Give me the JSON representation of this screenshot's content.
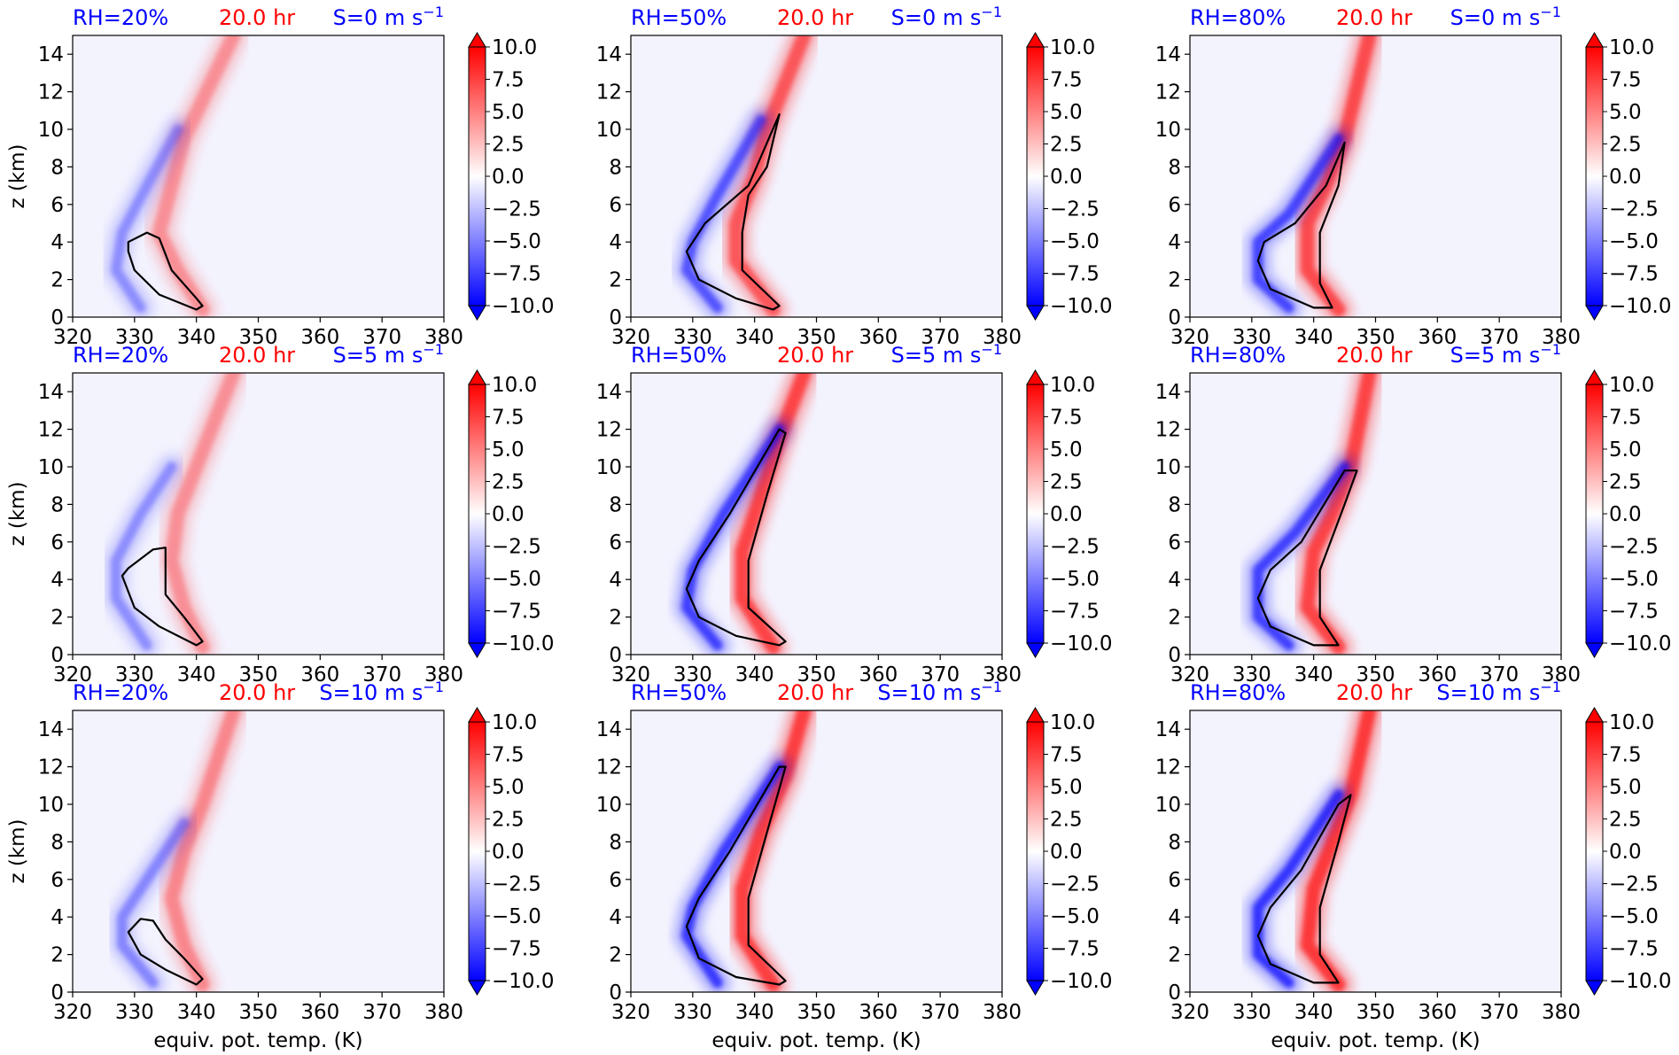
{
  "figure": {
    "ylabel": "z (km)",
    "xlabel": "equiv. pot. temp. (K)",
    "colorbar": {
      "ticks": [
        "10.0",
        "7.5",
        "5.0",
        "2.5",
        "0.0",
        "−2.5",
        "−5.0",
        "−7.5",
        "−10.0"
      ],
      "range": [
        -10,
        10
      ],
      "extend": "both",
      "colormap": "bwr",
      "colors": {
        "neg": "#0000ff",
        "zero": "#ffffff",
        "pos": "#ff0000"
      }
    },
    "colors": {
      "rh_text": "#0000ff",
      "time_text": "#ff0000",
      "shear_text": "#0000ff",
      "contour": "#000000",
      "background_field": "#f3f3fe"
    }
  },
  "chart_data": {
    "type": "heatmap",
    "layout": "3x3 grid",
    "xlim": [
      320,
      380
    ],
    "ylim": [
      0,
      15
    ],
    "xticks": [
      "320",
      "330",
      "340",
      "350",
      "360",
      "370",
      "380"
    ],
    "yticks": [
      "0",
      "2",
      "4",
      "6",
      "8",
      "10",
      "12",
      "14"
    ],
    "xlabel": "equiv. pot. temp. (K)",
    "ylabel": "z (km)",
    "panels": [
      {
        "rh": "RH=20%",
        "time": "20.0 hr",
        "shear": "S=0 m s",
        "sup": "−1",
        "strength": 0.35,
        "neg_band": [
          [
            331,
            0.5
          ],
          [
            327,
            2.5
          ],
          [
            328,
            4.5
          ],
          [
            332,
            7
          ],
          [
            337,
            10
          ]
        ],
        "pos_band": [
          [
            341,
            0.4
          ],
          [
            337,
            2.5
          ],
          [
            334,
            4.5
          ],
          [
            336,
            7
          ],
          [
            338,
            9.5
          ],
          [
            346,
            15
          ]
        ],
        "contour": [
          [
            329,
            3.5
          ],
          [
            330,
            2.5
          ],
          [
            334,
            1.2
          ],
          [
            340,
            0.4
          ],
          [
            341,
            0.6
          ],
          [
            340,
            1.0
          ],
          [
            336,
            2.5
          ],
          [
            334,
            4.2
          ],
          [
            332,
            4.5
          ],
          [
            329,
            4
          ]
        ]
      },
      {
        "rh": "RH=50%",
        "time": "20.0 hr",
        "shear": "S=0 m s",
        "sup": "−1",
        "strength": 0.75,
        "neg_band": [
          [
            334,
            0.5
          ],
          [
            329,
            2.5
          ],
          [
            330,
            4
          ],
          [
            334,
            6.5
          ],
          [
            341,
            10.5
          ]
        ],
        "pos_band": [
          [
            343,
            0.4
          ],
          [
            337,
            3
          ],
          [
            337,
            5
          ],
          [
            340,
            7.5
          ],
          [
            342,
            10
          ],
          [
            348,
            15
          ]
        ],
        "contour": [
          [
            329,
            3.5
          ],
          [
            331,
            2
          ],
          [
            337,
            1
          ],
          [
            343,
            0.4
          ],
          [
            344,
            0.6
          ],
          [
            338,
            2.5
          ],
          [
            338,
            4.5
          ],
          [
            339,
            6.5
          ],
          [
            342,
            8
          ],
          [
            344,
            10.8
          ],
          [
            339,
            7
          ],
          [
            332,
            5
          ],
          [
            329,
            3.5
          ]
        ]
      },
      {
        "rh": "RH=80%",
        "time": "20.0 hr",
        "shear": "S=0 m s",
        "sup": "−1",
        "strength": 0.85,
        "neg_band": [
          [
            336,
            0.5
          ],
          [
            331,
            2
          ],
          [
            331,
            4
          ],
          [
            336,
            5.5
          ],
          [
            344,
            9.5
          ]
        ],
        "pos_band": [
          [
            344,
            0.4
          ],
          [
            339,
            2.5
          ],
          [
            339,
            5
          ],
          [
            342,
            7
          ],
          [
            345,
            9.5
          ],
          [
            349,
            15
          ]
        ],
        "contour": [
          [
            331,
            3
          ],
          [
            333,
            1.5
          ],
          [
            340,
            0.5
          ],
          [
            343,
            0.5
          ],
          [
            341,
            1.8
          ],
          [
            341,
            4.5
          ],
          [
            344,
            7
          ],
          [
            345,
            9.3
          ],
          [
            342,
            7
          ],
          [
            337,
            5
          ],
          [
            332,
            4
          ],
          [
            331,
            3
          ]
        ]
      },
      {
        "rh": "RH=20%",
        "time": "20.0 hr",
        "shear": "S=5 m s",
        "sup": "−1",
        "strength": 0.35,
        "neg_band": [
          [
            332,
            0.5
          ],
          [
            327,
            3
          ],
          [
            327,
            5
          ],
          [
            331,
            7.5
          ],
          [
            336,
            10
          ]
        ],
        "pos_band": [
          [
            341,
            0.4
          ],
          [
            338,
            2.5
          ],
          [
            336,
            5
          ],
          [
            337,
            7.5
          ],
          [
            340,
            10
          ],
          [
            346,
            15
          ]
        ],
        "contour": [
          [
            328,
            4.2
          ],
          [
            330,
            2.5
          ],
          [
            334,
            1.5
          ],
          [
            340,
            0.5
          ],
          [
            341,
            0.7
          ],
          [
            338,
            2
          ],
          [
            335,
            3.2
          ],
          [
            335,
            5.7
          ],
          [
            333,
            5.6
          ],
          [
            329,
            4.6
          ],
          [
            328,
            4.2
          ]
        ]
      },
      {
        "rh": "RH=50%",
        "time": "20.0 hr",
        "shear": "S=5 m s",
        "sup": "−1",
        "strength": 0.9,
        "neg_band": [
          [
            334,
            0.5
          ],
          [
            329,
            2.5
          ],
          [
            330,
            4.5
          ],
          [
            335,
            7.5
          ],
          [
            344,
            12
          ]
        ],
        "pos_band": [
          [
            343,
            0.4
          ],
          [
            338,
            3
          ],
          [
            338,
            5.5
          ],
          [
            341,
            8.5
          ],
          [
            344,
            11.5
          ],
          [
            348,
            15
          ]
        ],
        "contour": [
          [
            329,
            3.5
          ],
          [
            331,
            2
          ],
          [
            337,
            1
          ],
          [
            344,
            0.5
          ],
          [
            345,
            0.7
          ],
          [
            339,
            2.5
          ],
          [
            339,
            5
          ],
          [
            342,
            8.5
          ],
          [
            345,
            11.8
          ],
          [
            344,
            12
          ],
          [
            336,
            7.5
          ],
          [
            331,
            5
          ],
          [
            329,
            3.5
          ]
        ]
      },
      {
        "rh": "RH=80%",
        "time": "20.0 hr",
        "shear": "S=5 m s",
        "sup": "−1",
        "strength": 0.9,
        "neg_band": [
          [
            336,
            0.5
          ],
          [
            331,
            2
          ],
          [
            331,
            4.5
          ],
          [
            337,
            6.5
          ],
          [
            345,
            10
          ]
        ],
        "pos_band": [
          [
            344,
            0.4
          ],
          [
            339,
            2.5
          ],
          [
            340,
            5.5
          ],
          [
            343,
            7.5
          ],
          [
            346,
            10
          ],
          [
            349,
            15
          ]
        ],
        "contour": [
          [
            331,
            3
          ],
          [
            333,
            1.5
          ],
          [
            340,
            0.5
          ],
          [
            344,
            0.5
          ],
          [
            341,
            2
          ],
          [
            341,
            4.5
          ],
          [
            345,
            8
          ],
          [
            347,
            9.8
          ],
          [
            345,
            9.8
          ],
          [
            338,
            6
          ],
          [
            333,
            4.5
          ],
          [
            331,
            3
          ]
        ]
      },
      {
        "rh": "RH=20%",
        "time": "20.0 hr",
        "shear": "S=10 m s",
        "sup": "−1",
        "strength": 0.4,
        "neg_band": [
          [
            333,
            0.5
          ],
          [
            328,
            2.5
          ],
          [
            328,
            4
          ],
          [
            332,
            6
          ],
          [
            338,
            9
          ]
        ],
        "pos_band": [
          [
            341,
            0.4
          ],
          [
            338,
            2.5
          ],
          [
            336,
            5
          ],
          [
            338,
            7.5
          ],
          [
            341,
            10
          ],
          [
            346,
            15
          ]
        ],
        "contour": [
          [
            329,
            3.2
          ],
          [
            331,
            2
          ],
          [
            335,
            1.2
          ],
          [
            340,
            0.4
          ],
          [
            341,
            0.7
          ],
          [
            338,
            1.8
          ],
          [
            335,
            2.8
          ],
          [
            333,
            3.8
          ],
          [
            331,
            3.9
          ],
          [
            329,
            3.2
          ]
        ]
      },
      {
        "rh": "RH=50%",
        "time": "20.0 hr",
        "shear": "S=10 m s",
        "sup": "−1",
        "strength": 0.95,
        "neg_band": [
          [
            334,
            0.5
          ],
          [
            329,
            3
          ],
          [
            330,
            4.5
          ],
          [
            335,
            7.5
          ],
          [
            344,
            12
          ]
        ],
        "pos_band": [
          [
            343,
            0.4
          ],
          [
            338,
            3
          ],
          [
            338,
            5.5
          ],
          [
            341,
            8.5
          ],
          [
            345,
            11.5
          ],
          [
            348,
            15
          ]
        ],
        "contour": [
          [
            329,
            3.5
          ],
          [
            331,
            1.8
          ],
          [
            337,
            0.8
          ],
          [
            344,
            0.4
          ],
          [
            345,
            0.6
          ],
          [
            339,
            2.5
          ],
          [
            339,
            5
          ],
          [
            342,
            8.5
          ],
          [
            345,
            12
          ],
          [
            344,
            12
          ],
          [
            336,
            7.5
          ],
          [
            331,
            5
          ],
          [
            329,
            3.5
          ]
        ]
      },
      {
        "rh": "RH=80%",
        "time": "20.0 hr",
        "shear": "S=10 m s",
        "sup": "−1",
        "strength": 1.0,
        "neg_band": [
          [
            336,
            0.5
          ],
          [
            331,
            2
          ],
          [
            331,
            4.5
          ],
          [
            336,
            6.5
          ],
          [
            344,
            10.5
          ]
        ],
        "pos_band": [
          [
            344,
            0.4
          ],
          [
            339,
            2.5
          ],
          [
            340,
            5.5
          ],
          [
            343,
            8
          ],
          [
            346,
            10.5
          ],
          [
            349,
            15
          ]
        ],
        "contour": [
          [
            331,
            3
          ],
          [
            333,
            1.5
          ],
          [
            340,
            0.5
          ],
          [
            344,
            0.5
          ],
          [
            341,
            2
          ],
          [
            341,
            4.5
          ],
          [
            344,
            8
          ],
          [
            346,
            10.5
          ],
          [
            344,
            10
          ],
          [
            338,
            6.5
          ],
          [
            333,
            4.5
          ],
          [
            331,
            3
          ]
        ]
      }
    ]
  }
}
